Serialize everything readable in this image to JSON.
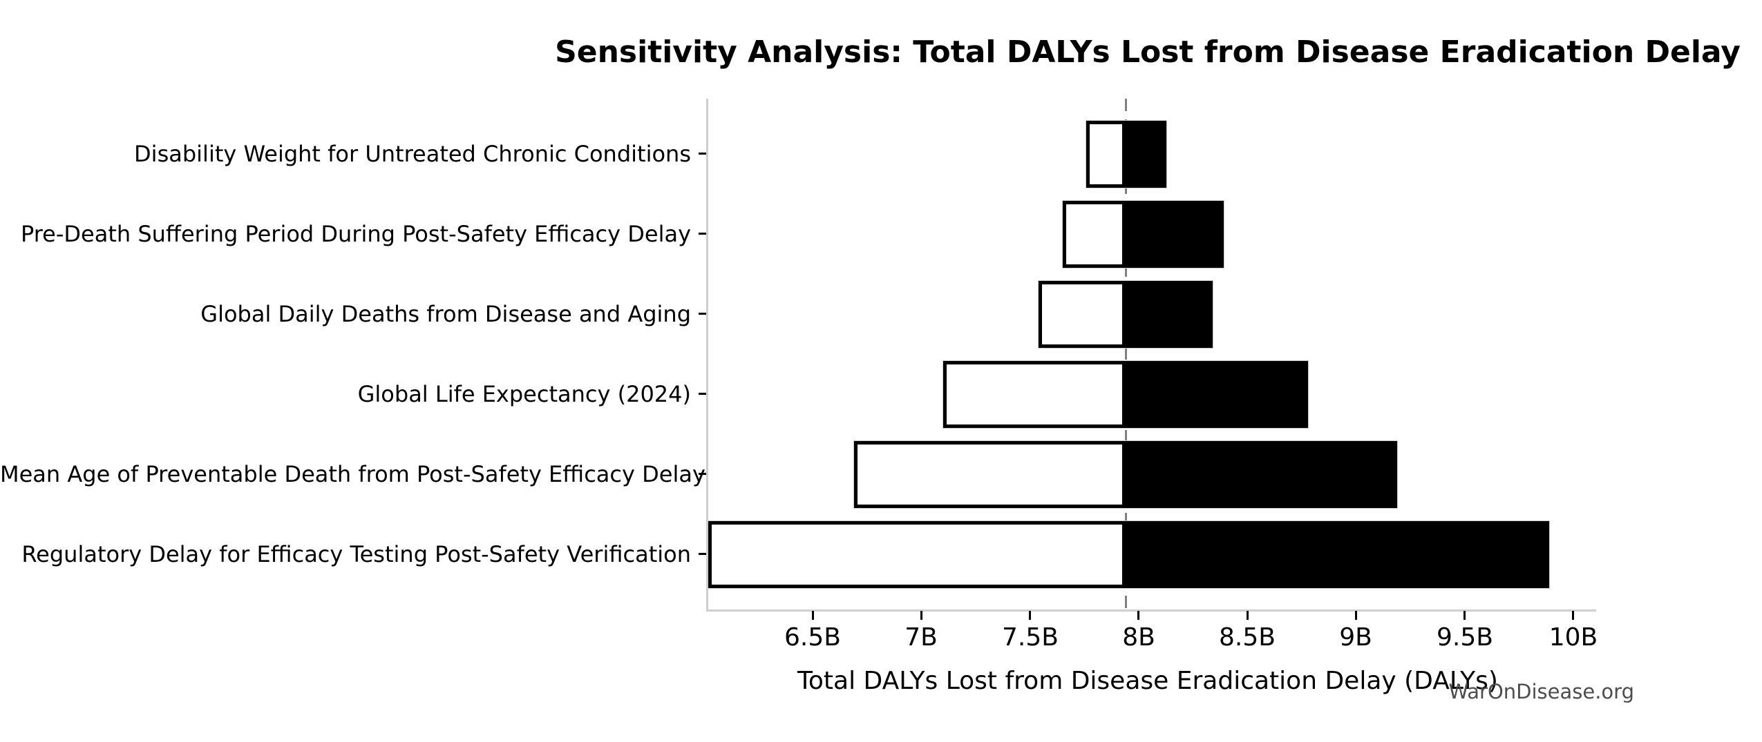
{
  "chart_data": {
    "type": "bar",
    "subtype": "tornado-sensitivity",
    "orientation": "horizontal",
    "title": "Sensitivity Analysis: Total DALYs Lost from Disease Eradication Delay",
    "xlabel": "Total DALYs Lost from Disease Eradication Delay (DALYs)",
    "value_unit": "billions of DALYs",
    "xlim": [
      6.01,
      10.07
    ],
    "baseline": 7.94,
    "grid": false,
    "legend_position": "none",
    "x_ticks": [
      {
        "value": 6.5,
        "label": "6.5B"
      },
      {
        "value": 7.0,
        "label": "7B"
      },
      {
        "value": 7.5,
        "label": "7.5B"
      },
      {
        "value": 8.0,
        "label": "8B"
      },
      {
        "value": 8.5,
        "label": "8.5B"
      },
      {
        "value": 9.0,
        "label": "9B"
      },
      {
        "value": 9.5,
        "label": "9.5B"
      },
      {
        "value": 10.0,
        "label": "10B"
      }
    ],
    "categories": [
      "Disability Weight for Untreated Chronic Conditions",
      "Pre-Death Suffering Period During Post-Safety Efficacy Delay",
      "Global Daily Deaths from Disease and Aging",
      "Global Life Expectancy (2024)",
      "Mean Age of Preventable Death from Post-Safety Efficacy Delay",
      "Regulatory Delay for Efficacy Testing Post-Safety Verification"
    ],
    "bars": [
      {
        "label": "Disability Weight for Untreated Chronic Conditions",
        "low": 7.76,
        "high": 8.13
      },
      {
        "label": "Pre-Death Suffering Period During Post-Safety Efficacy Delay",
        "low": 7.65,
        "high": 8.39
      },
      {
        "label": "Global Daily Deaths from Disease and Aging",
        "low": 7.54,
        "high": 8.34
      },
      {
        "label": "Global Life Expectancy (2024)",
        "low": 7.1,
        "high": 8.78
      },
      {
        "label": "Mean Age of Preventable Death from Post-Safety Efficacy Delay",
        "low": 6.69,
        "high": 9.19
      },
      {
        "label": "Regulatory Delay for Efficacy Testing Post-Safety Verification",
        "low": 6.02,
        "high": 9.89
      }
    ],
    "watermark": "WarOnDisease.org",
    "colors": {
      "low_fill": "#ffffff",
      "high_fill": "#000000",
      "bar_edge": "#000000",
      "baseline_line": "#808080",
      "spine": "#cfcfcf",
      "text": "#000000",
      "watermark": "#4d4d4d"
    }
  }
}
